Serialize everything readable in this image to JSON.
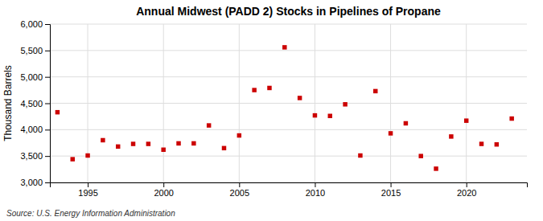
{
  "chart_data": {
    "type": "scatter",
    "title": "Annual Midwest (PADD 2) Stocks in Pipelines of Propane",
    "ylabel": "Thousand Barrels",
    "annotations": [
      "Source: U.S. Energy Information Administration"
    ],
    "x": [
      1993,
      1994,
      1995,
      1996,
      1997,
      1998,
      1999,
      2000,
      2001,
      2002,
      2003,
      2004,
      2005,
      2006,
      2007,
      2008,
      2009,
      2010,
      2011,
      2012,
      2013,
      2014,
      2015,
      2016,
      2017,
      2018,
      2019,
      2020,
      2021,
      2022,
      2023
    ],
    "values": [
      4330,
      3440,
      3510,
      3800,
      3680,
      3730,
      3730,
      3620,
      3740,
      3740,
      4080,
      3650,
      3890,
      4750,
      4790,
      5560,
      4600,
      4270,
      4260,
      4480,
      3510,
      4730,
      3930,
      4120,
      3500,
      3260,
      3870,
      4170,
      3730,
      3720,
      4210
    ],
    "color": "#cc0000",
    "marker": "square",
    "xlim": [
      1992.5,
      2024
    ],
    "xticks": [
      1995,
      2000,
      2005,
      2010,
      2015,
      2020
    ],
    "ylim": [
      3000,
      6000
    ],
    "yticks": [
      {
        "value": 3000,
        "label": "3,000"
      },
      {
        "value": 3500,
        "label": "3,500"
      },
      {
        "value": 4000,
        "label": "4,000"
      },
      {
        "value": 4500,
        "label": "4,500"
      },
      {
        "value": 5000,
        "label": "5,000"
      },
      {
        "value": 5500,
        "label": "5,500"
      },
      {
        "value": 6000,
        "label": "6,000"
      }
    ],
    "grid": true
  }
}
